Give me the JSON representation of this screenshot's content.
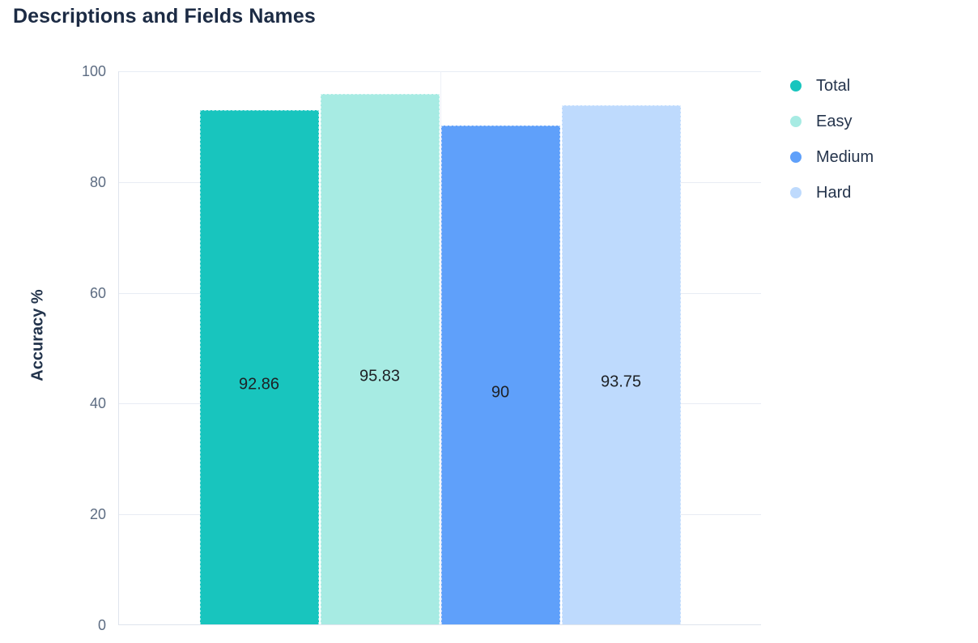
{
  "chart_data": {
    "type": "bar",
    "title": "Descriptions and Fields Names",
    "xlabel": "",
    "ylabel": "Accuracy %",
    "ylim": [
      0,
      100
    ],
    "yticks": [
      0,
      20,
      40,
      60,
      80,
      100
    ],
    "grid": true,
    "legend_position": "right",
    "series": [
      {
        "name": "Total",
        "value": 92.86,
        "label": "92.86",
        "color": "#18c5be"
      },
      {
        "name": "Easy",
        "value": 95.83,
        "label": "95.83",
        "color": "#a7ebe3"
      },
      {
        "name": "Medium",
        "value": 90,
        "label": "90",
        "color": "#5fa0fa"
      },
      {
        "name": "Hard",
        "value": 93.75,
        "label": "93.75",
        "color": "#bedafd"
      }
    ]
  },
  "theme": {
    "title_color": "#1c2b44",
    "axis_label_color": "#22334b",
    "tick_color": "#5d6c82",
    "value_label_color": "#1e2125",
    "legend_text_color": "#25344c",
    "grid_color": "#e8ecf4",
    "axis_line_color": "#dfe4ed",
    "background": "#ffffff"
  }
}
